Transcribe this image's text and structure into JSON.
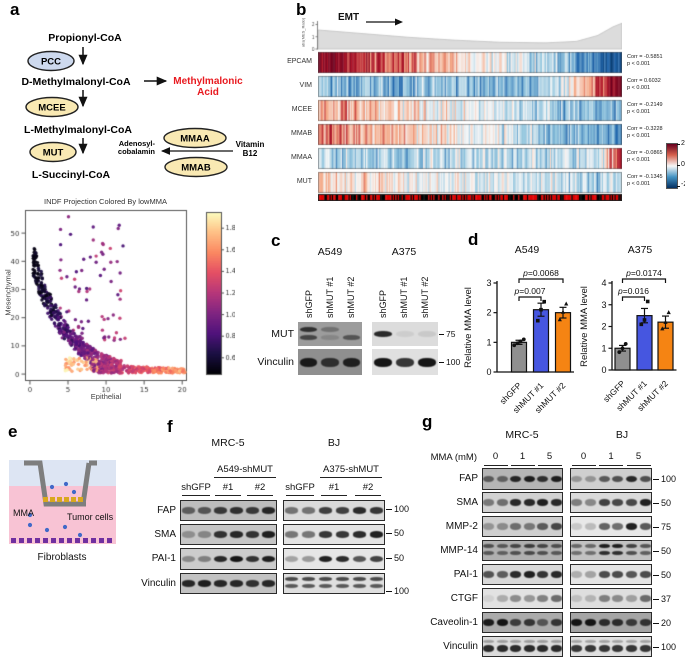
{
  "panel_labels": {
    "a": "a",
    "b": "b",
    "c": "c",
    "d": "d",
    "e": "e",
    "f": "f",
    "g": "g"
  },
  "panel_a": {
    "metabolites": [
      "Propionyl-CoA",
      "D-Methylmalonyl-CoA",
      "L-Methylmalonyl-CoA",
      "L-Succinyl-CoA"
    ],
    "enzymes": {
      "pcc": "PCC",
      "mcee": "MCEE",
      "mut": "MUT",
      "mmaa": "MMAA",
      "mmab": "MMAB"
    },
    "byproduct": [
      "Methylmalonic",
      "Acid"
    ],
    "cofactor": [
      "Adenosyl-",
      "cobalamin"
    ],
    "vitamin": [
      "Vitamin",
      "B12"
    ],
    "colors": {
      "pcc_fill": "#cdd9ee",
      "enzyme_fill": "#f9e9b3",
      "byproduct_text": "#e8191f"
    }
  },
  "chart_data": [
    {
      "id": "lowmma_scatter",
      "type": "scatter",
      "title": "INDF Projection Colored By lowMMA",
      "xlabel": "Epithelial",
      "ylabel": "Mesenchymal",
      "xlim": [
        -0.65,
        20.5
      ],
      "ylim": [
        -2.1,
        58.2
      ],
      "xticks": [
        0,
        5,
        10,
        15,
        20
      ],
      "yticks": [
        0,
        10,
        20,
        30,
        40,
        50
      ],
      "colorbar": {
        "cmap": "magma",
        "ticks": [
          0.6,
          0.8,
          1.0,
          1.2,
          1.4,
          1.6,
          1.8
        ],
        "range": [
          0.45,
          1.95
        ]
      },
      "pattern": "inverse Epithelial vs Mesenchymal curve; dark (low lowMMA score) cells at high Mesenchymal / low Epithelial, bright orange (high lowMMA) cells at low Mesenchymal",
      "n_points": 950,
      "seed": 7
    },
    {
      "id": "emt_heatmap",
      "type": "heatmap",
      "arrow_label": "EMT",
      "density_ylabel": "abs(MES_Ratio)",
      "density_yticks": [
        "2",
        "1",
        "0"
      ],
      "rows": [
        {
          "gene": "EPCAM",
          "corr": "Corr = -0.5851",
          "p": "p < 0.001"
        },
        {
          "gene": "VIM",
          "corr": "Corr = 0.6032",
          "p": "p < 0.001"
        },
        {
          "gene": "MCEE",
          "corr": "Corr = -0.2149",
          "p": "p < 0.001"
        },
        {
          "gene": "MMAB",
          "corr": "Corr = -0.3228",
          "p": "p < 0.001"
        },
        {
          "gene": "MMAA",
          "corr": "Corr = -0.0865",
          "p": "p < 0.001"
        },
        {
          "gene": "MUT",
          "corr": "Corr = -0.1345",
          "p": "p < 0.001"
        }
      ],
      "colorbar_ticks": [
        "2",
        "0",
        "-2"
      ],
      "n_cols": 240,
      "seed": 99
    },
    {
      "id": "mma_A549",
      "type": "bar",
      "title": "A549",
      "ylabel": "Relative MMA level",
      "categories": [
        "shGFP",
        "shMUT #1",
        "shMUT #2"
      ],
      "values": [
        1.0,
        2.1,
        2.0
      ],
      "errors": [
        0.07,
        0.22,
        0.18
      ],
      "points": [
        [
          0.9,
          0.97,
          1.03,
          1.1
        ],
        [
          1.73,
          2.1,
          2.37
        ],
        [
          1.77,
          2.02,
          2.3
        ]
      ],
      "ylim": [
        0,
        3
      ],
      "yticks": [
        0,
        1,
        2,
        3
      ],
      "colors": [
        "#8f8f8f",
        "#4656e0",
        "#f58413"
      ],
      "sig": [
        {
          "pair": [
            0,
            1
          ],
          "label": "p=0.007"
        },
        {
          "pair": [
            0,
            2
          ],
          "label": "p=0.0068"
        }
      ]
    },
    {
      "id": "mma_A375",
      "type": "bar",
      "title": "A375",
      "ylabel": "Relative MMA level",
      "categories": [
        "shGFP",
        "shMUT #1",
        "shMUT #2"
      ],
      "values": [
        1.0,
        2.5,
        2.2
      ],
      "errors": [
        0.13,
        0.33,
        0.28
      ],
      "points": [
        [
          0.82,
          1.0,
          1.2
        ],
        [
          2.1,
          2.3,
          3.15
        ],
        [
          1.9,
          2.2,
          2.65
        ]
      ],
      "ylim": [
        0,
        4
      ],
      "yticks": [
        0,
        1,
        2,
        3,
        4
      ],
      "colors": [
        "#8f8f8f",
        "#4656e0",
        "#f58413"
      ],
      "sig": [
        {
          "pair": [
            0,
            1
          ],
          "label": "p=0.016"
        },
        {
          "pair": [
            0,
            2
          ],
          "label": "p=0.0174"
        }
      ]
    }
  ],
  "panel_c": {
    "groups": [
      {
        "title": "A549",
        "lanes": [
          "shGFP",
          "shMUT #1",
          "shMUT #2"
        ],
        "bg": "#9c9c9c",
        "vinc_bg": "#8f8f8f",
        "mut_upper": [
          0.75,
          0.3,
          0
        ],
        "mut_lower": [
          0.6,
          0.15,
          0.5
        ],
        "vinculin": [
          0.9,
          0.75,
          0.85
        ]
      },
      {
        "title": "A375",
        "lanes": [
          "shGFP",
          "shMUT #1",
          "shMUT #2"
        ],
        "bg": "#dcdcdc",
        "vinc_bg": "#e0e0e0",
        "mut_upper": [
          0.85,
          0.07,
          0.09
        ],
        "mut_lower": [
          0,
          0,
          0
        ],
        "vinculin": [
          0.95,
          0.8,
          0.95
        ]
      }
    ],
    "rows": [
      "MUT",
      "Vinculin"
    ],
    "markers": [
      "75",
      "100"
    ]
  },
  "panel_e": {
    "labels": {
      "mma": "MMA",
      "tumor": "Tumor cells",
      "fibroblasts": "Fibroblasts"
    },
    "colors": {
      "upper_medium": "#dde5f3",
      "lower_medium": "#f8c3d4",
      "insert": "#7e7e7e",
      "tumor_cells": "#d9a71e",
      "mma_dots": "#4169c8",
      "fibroblast_cells": "#7030a0"
    }
  },
  "panel_f": {
    "columns": [
      {
        "cell_line": "MRC-5",
        "treatment": "A549-shMUT",
        "groups": [
          "shGFP",
          "#1",
          "#2"
        ]
      },
      {
        "cell_line": "BJ",
        "treatment": "A375-shMUT",
        "groups": [
          "shGFP",
          "#1",
          "#2"
        ]
      }
    ],
    "rows": [
      {
        "protein": "FAP",
        "marker": "100",
        "bg": [
          "#bdbdbd",
          "#dadada"
        ],
        "bands": [
          [
            0.55,
            0.6,
            0.75,
            0.8,
            0.75,
            0.85
          ],
          [
            0.5,
            0.5,
            0.75,
            0.75,
            0.85,
            0.8
          ]
        ]
      },
      {
        "protein": "SMA",
        "marker": "50",
        "bg": [
          "#c6c6c6",
          "#e3e3e3"
        ],
        "bands": [
          [
            0.3,
            0.35,
            0.8,
            0.85,
            0.8,
            0.9
          ],
          [
            0.5,
            0.5,
            0.8,
            0.8,
            0.85,
            0.9
          ]
        ]
      },
      {
        "protein": "PAI-1",
        "marker": "50",
        "bg": [
          "#cccccc",
          "#e6e6e6"
        ],
        "bands": [
          [
            0.35,
            0.4,
            0.85,
            0.95,
            0.8,
            0.9
          ],
          [
            0.3,
            0.35,
            0.9,
            0.85,
            0.65,
            0.75
          ]
        ]
      },
      {
        "protein": "Vinculin",
        "marker": "100",
        "bg": [
          "#c2c2c2",
          "#dfdfdf"
        ],
        "double": [
          false,
          true
        ],
        "bands": [
          [
            0.85,
            0.9,
            0.85,
            0.85,
            0.8,
            0.85
          ],
          [
            0.7,
            0.7,
            0.7,
            0.7,
            0.7,
            0.7
          ]
        ]
      }
    ]
  },
  "panel_g": {
    "dose_label": "MMA (mM)",
    "doses": [
      "0",
      "1",
      "5"
    ],
    "columns": [
      {
        "cell_line": "MRC-5"
      },
      {
        "cell_line": "BJ"
      }
    ],
    "rows": [
      {
        "protein": "FAP",
        "marker": "100",
        "bg": [
          "#b5b5b5",
          "#cfcfcf"
        ],
        "bands": [
          [
            0.55,
            0.5,
            0.85,
            0.9,
            0.8,
            0.9
          ],
          [
            0.3,
            0.3,
            0.6,
            0.65,
            0.85,
            0.65
          ]
        ]
      },
      {
        "protein": "SMA",
        "marker": "50",
        "bg": [
          "#d2d2d2",
          "#dadada"
        ],
        "bands": [
          [
            0.45,
            0.5,
            0.85,
            0.85,
            0.9,
            0.85
          ],
          [
            0.45,
            0.4,
            0.75,
            0.7,
            0.7,
            0.9
          ]
        ]
      },
      {
        "protein": "MMP-2",
        "marker": "75",
        "bg": [
          "#cfcfcf",
          "#e8e8e8"
        ],
        "bands": [
          [
            0.3,
            0.35,
            0.5,
            0.45,
            0.6,
            0.7
          ],
          [
            0.15,
            0.2,
            0.6,
            0.55,
            0.9,
            0.65
          ]
        ]
      },
      {
        "protein": "MMP-14",
        "marker": "50",
        "bg": [
          "#b0b0b0",
          "#c2c2c2"
        ],
        "double": [
          true,
          true
        ],
        "bands": [
          [
            0.6,
            0.55,
            0.65,
            0.7,
            0.65,
            0.6
          ],
          [
            0.5,
            0.5,
            0.9,
            0.9,
            0.7,
            0.6
          ]
        ]
      },
      {
        "protein": "PAI-1",
        "marker": "50",
        "bg": [
          "#d8d8d8",
          "#e4e4e4"
        ],
        "bands": [
          [
            0.65,
            0.6,
            0.85,
            0.9,
            0.8,
            0.85
          ],
          [
            0.25,
            0.3,
            0.7,
            0.7,
            0.65,
            0.7
          ]
        ]
      },
      {
        "protein": "CTGF",
        "marker": "37",
        "bg": [
          "#e2e2e2",
          "#dedede"
        ],
        "bands": [
          [
            0.08,
            0.25,
            0.4,
            0.35,
            0.45,
            0.55
          ],
          [
            0.15,
            0.2,
            0.45,
            0.4,
            0.3,
            0.55
          ]
        ]
      },
      {
        "protein": "Caveolin-1",
        "marker": "20",
        "bg": [
          "#ababab",
          "#a5a5a5"
        ],
        "bands": [
          [
            0.9,
            0.95,
            0.7,
            0.75,
            0.55,
            0.75
          ],
          [
            0.95,
            0.95,
            0.8,
            0.8,
            0.7,
            0.75
          ]
        ]
      },
      {
        "protein": "Vinculin",
        "marker": "100",
        "bg": [
          "#dcdcdc",
          "#e0e0e0"
        ],
        "smudge": true,
        "bands": [
          [
            0.85,
            0.85,
            0.85,
            0.85,
            0.85,
            0.85
          ],
          [
            0.8,
            0.8,
            0.8,
            0.8,
            0.8,
            0.8
          ]
        ]
      }
    ]
  }
}
